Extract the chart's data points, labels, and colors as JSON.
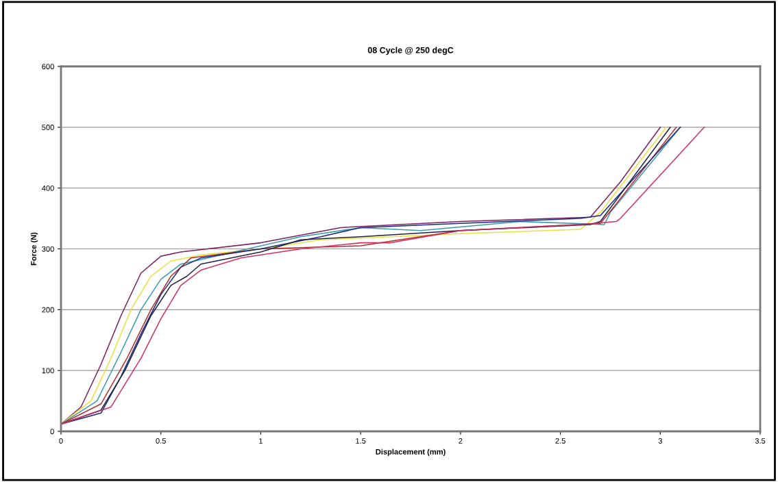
{
  "chart_data": {
    "type": "line",
    "title": "08 Cycle @ 250 degC",
    "xlabel": "Displacement (mm)",
    "ylabel": "Force (N)",
    "xlim": [
      0,
      3.5
    ],
    "xticks": [
      0,
      0.5,
      1,
      1.5,
      2,
      2.5,
      3,
      3.5
    ],
    "ylim": [
      0,
      600
    ],
    "yticks": [
      0,
      100,
      200,
      300,
      400,
      500,
      600
    ],
    "grid": "y",
    "legend": false,
    "marker": "none",
    "line_style": "solid",
    "series": [
      {
        "color": "#7b1f5e",
        "x": [
          0,
          0.1,
          0.2,
          0.3,
          0.4,
          0.5,
          0.6,
          1.0,
          1.4,
          2.0,
          2.65,
          2.8,
          3.0
        ],
        "values": [
          12,
          40,
          110,
          190,
          260,
          288,
          295,
          310,
          335,
          345,
          352,
          410,
          500
        ]
      },
      {
        "color": "#e8e040",
        "x": [
          0,
          0.15,
          0.25,
          0.35,
          0.45,
          0.55,
          0.7,
          1.0,
          1.3,
          2.0,
          2.6,
          2.7,
          3.03
        ],
        "values": [
          12,
          50,
          120,
          200,
          255,
          280,
          290,
          300,
          315,
          325,
          332,
          360,
          500
        ]
      },
      {
        "color": "#3a9ab0",
        "x": [
          0,
          0.18,
          0.3,
          0.4,
          0.5,
          0.6,
          0.8,
          1.2,
          1.5,
          1.8,
          2.3,
          2.72,
          2.75,
          3.1
        ],
        "values": [
          12,
          50,
          130,
          200,
          250,
          275,
          290,
          320,
          335,
          330,
          345,
          340,
          360,
          500
        ]
      },
      {
        "color": "#b03030",
        "x": [
          0,
          0.2,
          0.33,
          0.45,
          0.55,
          0.65,
          1.0,
          1.5,
          1.6,
          2.0,
          2.7,
          2.77,
          3.08
        ],
        "values": [
          12,
          45,
          120,
          200,
          255,
          285,
          300,
          305,
          310,
          330,
          342,
          370,
          500
        ]
      },
      {
        "color": "#1a2a80",
        "x": [
          0,
          0.2,
          0.3,
          0.4,
          0.5,
          0.6,
          0.7,
          1.0,
          1.3,
          1.5,
          2.0,
          2.6,
          2.7,
          3.1
        ],
        "values": [
          12,
          30,
          90,
          160,
          225,
          270,
          285,
          300,
          320,
          335,
          342,
          350,
          355,
          500
        ]
      },
      {
        "color": "#202040",
        "x": [
          0,
          0.2,
          0.32,
          0.45,
          0.55,
          0.63,
          0.7,
          1.0,
          1.2,
          1.5,
          2.0,
          2.65,
          2.7,
          3.05
        ],
        "values": [
          12,
          35,
          100,
          190,
          240,
          255,
          275,
          295,
          315,
          320,
          330,
          340,
          345,
          500
        ]
      },
      {
        "color": "#d03060",
        "x": [
          0,
          0.25,
          0.4,
          0.5,
          0.6,
          0.7,
          0.9,
          1.2,
          1.5,
          1.65,
          2.0,
          2.6,
          2.78,
          2.8,
          3.22
        ],
        "values": [
          12,
          40,
          120,
          185,
          240,
          265,
          285,
          300,
          310,
          310,
          330,
          340,
          345,
          350,
          500
        ]
      }
    ]
  }
}
